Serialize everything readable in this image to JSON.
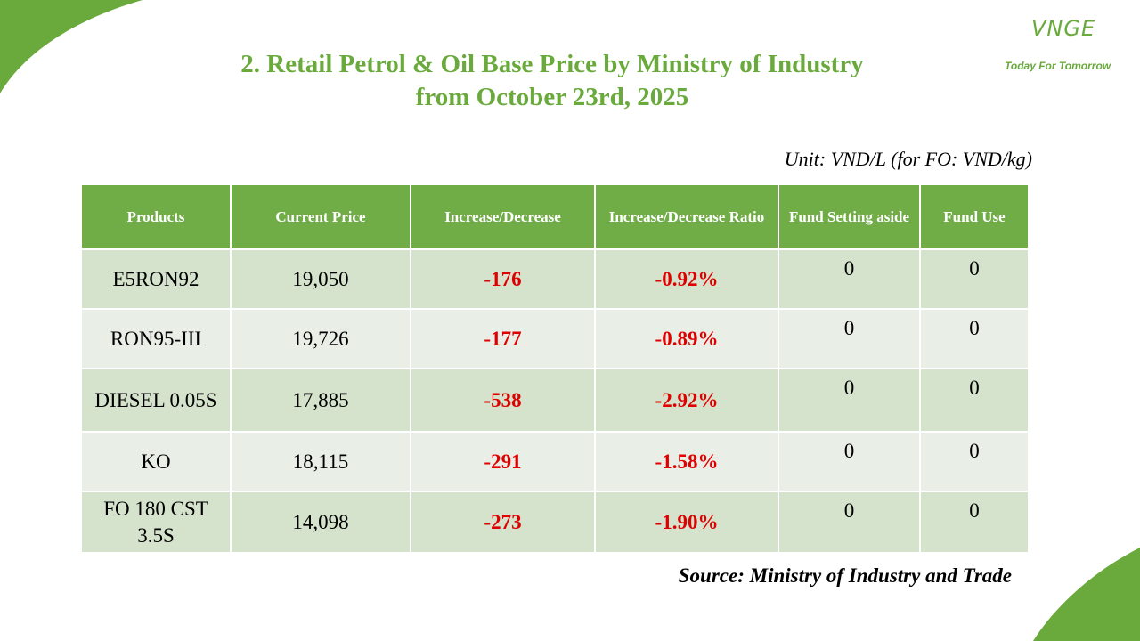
{
  "logo": {
    "brand": "VNGE",
    "tagline": "Today For Tomorrow"
  },
  "header": {
    "title_line1": "2. Retail Petrol & Oil Base Price by Ministry of Industry",
    "title_line2": "from October 23rd, 2025"
  },
  "unit": "Unit: VND/L (for FO: VND/kg)",
  "table": {
    "columns": [
      "Products",
      "Current Price",
      "Increase/Decrease",
      "Increase/Decrease Ratio",
      "Fund Setting aside",
      "Fund Use"
    ],
    "rows": [
      [
        "E5RON92",
        "19,050",
        "-176",
        "-0.92%",
        "0",
        "0"
      ],
      [
        "RON95-III",
        "19,726",
        "-177",
        "-0.89%",
        "0",
        "0"
      ],
      [
        "DIESEL 0.05S",
        "17,885",
        "-538",
        "-2.92%",
        "0",
        "0"
      ],
      [
        "KO",
        "18,115",
        "-291",
        "-1.58%",
        "0",
        "0"
      ],
      [
        "FO 180 CST 3.5S",
        "14,098",
        "-273",
        "-1.90%",
        "0",
        "0"
      ]
    ]
  },
  "source": "Source: Ministry of Industry and Trade"
}
